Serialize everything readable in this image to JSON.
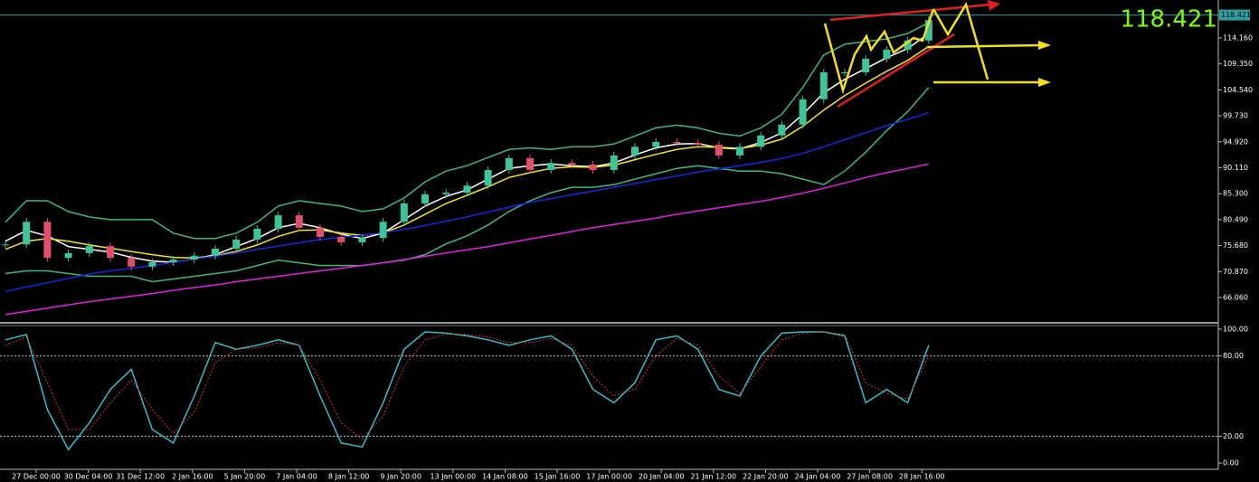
{
  "chart_data": [
    {
      "type": "candlestick",
      "close": [
        75.9,
        80.1,
        73.4,
        74.3,
        75.6,
        73.4,
        71.8,
        72.6,
        73.1,
        73.8,
        75.1,
        76.8,
        78.8,
        81.3,
        79.0,
        77.3,
        76.3,
        77.1,
        80.1,
        83.5,
        85.2,
        85.5,
        86.8,
        89.7,
        91.9,
        89.7,
        91.0,
        90.7,
        89.7,
        92.4,
        94.0,
        94.9,
        94.7,
        94.4,
        92.4,
        94.0,
        96.1,
        98.1,
        102.8,
        107.8,
        107.8,
        110.3,
        112.0,
        113.7,
        117.5
      ],
      "up_color": "#3cc49a",
      "down_color": "#e0506a",
      "series": [
        {
          "color": "#ffffff",
          "values": [
            76.5,
            78.5,
            77.5,
            75.5,
            75.0,
            74.5,
            73.5,
            72.8,
            72.6,
            73.2,
            74.0,
            75.5,
            77.0,
            79.0,
            79.8,
            79.0,
            77.8,
            77.0,
            78.0,
            80.5,
            83.0,
            84.8,
            86.0,
            88.0,
            90.0,
            90.5,
            90.8,
            90.5,
            90.3,
            91.0,
            92.5,
            93.8,
            94.5,
            94.6,
            93.8,
            93.6,
            94.8,
            96.6,
            100.0,
            104.0,
            106.5,
            108.5,
            110.5,
            112.2,
            115.0
          ]
        },
        {
          "color": "#f5e61e",
          "values": [
            75.0,
            76.5,
            77.0,
            76.5,
            75.8,
            75.2,
            74.6,
            74.0,
            73.5,
            73.4,
            73.8,
            74.6,
            75.8,
            77.4,
            78.5,
            78.6,
            78.0,
            77.6,
            78.0,
            79.5,
            81.5,
            83.5,
            85.0,
            86.6,
            88.3,
            89.2,
            90.0,
            90.3,
            90.2,
            90.6,
            91.6,
            92.6,
            93.5,
            94.0,
            93.9,
            93.7,
            94.3,
            95.4,
            97.8,
            100.8,
            103.5,
            105.8,
            108.0,
            110.0,
            112.6
          ]
        },
        {
          "color": "#3cb878",
          "values": [
            80,
            84,
            84,
            82,
            81,
            80.5,
            80.5,
            80.5,
            78,
            77,
            77,
            78,
            80,
            83,
            84,
            83.5,
            83,
            82,
            82.5,
            84.5,
            87.5,
            89.5,
            90.5,
            92,
            93.5,
            93.8,
            93.5,
            94,
            94,
            94.5,
            96,
            97.5,
            98,
            97.5,
            96.5,
            96,
            97.5,
            100,
            105,
            111,
            113,
            113.5,
            114,
            115,
            117
          ]
        },
        {
          "color": "#3cb878",
          "values": [
            70.5,
            71,
            71,
            70.5,
            70,
            70,
            70,
            69,
            69.5,
            70,
            70.5,
            71,
            72,
            73,
            72.5,
            72,
            72,
            72,
            72.5,
            73,
            74,
            76,
            77.5,
            79.5,
            82,
            84,
            85.5,
            86.5,
            86.5,
            87,
            88,
            89,
            90,
            90.5,
            90,
            89.5,
            89.5,
            89,
            88,
            87,
            89.5,
            93,
            97,
            100.5,
            105
          ]
        },
        {
          "color": "#1428e0",
          "values": [
            67.2,
            68.0,
            68.8,
            69.6,
            70.4,
            71.0,
            71.5,
            72.0,
            72.6,
            73.2,
            73.7,
            74.3,
            75.0,
            75.6,
            76.2,
            76.8,
            77.2,
            77.6,
            78.1,
            78.7,
            79.4,
            80.2,
            81.0,
            81.9,
            82.8,
            83.7,
            84.4,
            85.1,
            85.8,
            86.5,
            87.2,
            87.9,
            88.6,
            89.3,
            89.9,
            90.5,
            91.1,
            91.8,
            92.8,
            94.0,
            95.3,
            96.6,
            97.9,
            99.1,
            100.3
          ]
        },
        {
          "color": "#e020e0",
          "values": [
            62.9,
            63.5,
            64.1,
            64.7,
            65.3,
            65.8,
            66.3,
            66.8,
            67.4,
            67.9,
            68.4,
            69.0,
            69.5,
            70.0,
            70.5,
            71.0,
            71.5,
            72.0,
            72.5,
            73.1,
            73.7,
            74.3,
            74.9,
            75.5,
            76.2,
            76.9,
            77.6,
            78.3,
            79.0,
            79.6,
            80.2,
            80.8,
            81.5,
            82.1,
            82.7,
            83.3,
            83.9,
            84.6,
            85.4,
            86.3,
            87.3,
            88.3,
            89.2,
            90.0,
            90.8
          ]
        }
      ],
      "current_price": 118.421,
      "ylim": [
        61.37,
        121.2
      ],
      "yticks": [
        {
          "value": 114.16,
          "label": "114.160"
        },
        {
          "value": 109.35,
          "label": "109.350"
        },
        {
          "value": 104.54,
          "label": "104.540"
        },
        {
          "value": 99.73,
          "label": "99.730"
        },
        {
          "value": 94.92,
          "label": "94.920"
        },
        {
          "value": 90.11,
          "label": "90.110"
        },
        {
          "value": 85.3,
          "label": "85.300"
        },
        {
          "value": 80.49,
          "label": "80.490"
        },
        {
          "value": 75.68,
          "label": "75.680"
        },
        {
          "value": 70.87,
          "label": "70.870"
        },
        {
          "value": 66.06,
          "label": "66.060"
        }
      ],
      "xtick_labels": [
        "27 Dec 00:00",
        "30 Dec 04:00",
        "31 Dec 12:00",
        "2 Jan 16:00",
        "5 Jan 20:00",
        "7 Jan 04:00",
        "8 Jan 12:00",
        "9 Jan 20:00",
        "13 Jan 00:00",
        "14 Jan 08:00",
        "15 Jan 16:00",
        "17 Jan 00:00",
        "20 Jan 04:00",
        "21 Jan 12:00",
        "22 Jan 20:00",
        "24 Jan 04:00",
        "27 Jan 08:00",
        "28 Jan 16:00"
      ]
    },
    {
      "type": "line",
      "series": [
        {
          "color": "#30c0c8",
          "values": [
            92,
            96,
            40,
            10,
            30,
            55,
            70,
            25,
            15,
            50,
            90,
            85,
            88,
            92,
            88,
            50,
            15,
            12,
            45,
            85,
            98,
            97,
            95,
            92,
            88,
            92,
            95,
            85,
            55,
            45,
            60,
            92,
            95,
            85,
            55,
            50,
            80,
            97,
            98,
            98,
            95,
            45,
            55,
            45,
            88
          ]
        },
        {
          "color": "#e03030",
          "dashed": true,
          "values": [
            88,
            94,
            60,
            25,
            25,
            45,
            62,
            40,
            22,
            38,
            75,
            85,
            86,
            90,
            88,
            62,
            30,
            18,
            35,
            72,
            92,
            96,
            96,
            94,
            90,
            90,
            93,
            88,
            65,
            50,
            55,
            80,
            93,
            88,
            65,
            52,
            72,
            92,
            97,
            98,
            96,
            60,
            52,
            48,
            80
          ]
        }
      ],
      "levels": [
        80,
        20
      ],
      "ylim": [
        -4.7,
        102.7
      ],
      "yticks": [
        {
          "value": 100,
          "label": "100.00"
        },
        {
          "value": 80,
          "label": "80.00"
        },
        {
          "value": 20,
          "label": "20.00"
        },
        {
          "value": 0,
          "label": "0.00"
        }
      ]
    }
  ]
}
